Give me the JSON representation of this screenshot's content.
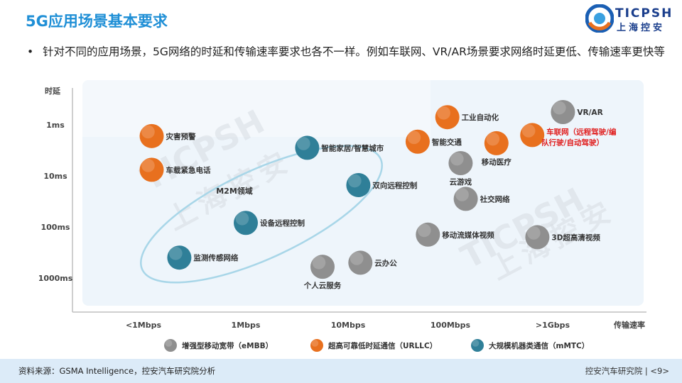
{
  "header": {
    "title": "5G应用场景基本要求",
    "logo_text": "TICPSH",
    "logo_sub": "上海控安"
  },
  "bullet": {
    "symbol": "•",
    "text": "针对不同的应用场景，5G网络的时延和传输速率要求也各不一样。例如车联网、VR/AR场景要求网络时延更低、传输速率更快等"
  },
  "watermark": {
    "latin": "TICPSH",
    "cn": "上海控安"
  },
  "colors": {
    "grey": "#8f8f8f",
    "orange": "#e8701e",
    "teal": "#2f7f98",
    "accent": "#1f8fd6",
    "red_label": "#e02020"
  },
  "chart_data": {
    "type": "scatter",
    "ylabel": "时延",
    "xlabel": "传输速率",
    "x_ticks": [
      "<1Mbps",
      "1Mbps",
      "10Mbps",
      "100Mbps",
      ">1Gbps"
    ],
    "y_ticks": [
      "1ms",
      "10ms",
      "100ms",
      "1000ms"
    ],
    "region_label": "M2M领域",
    "legend": [
      {
        "label": "增强型移动宽带（eMBB）",
        "category": "grey"
      },
      {
        "label": "超高可靠低时延通信（URLLC）",
        "category": "orange"
      },
      {
        "label": "大规模机器类通信（mMTC）",
        "category": "teal"
      }
    ],
    "points": [
      {
        "label": "灾害预警",
        "category": "orange",
        "x": 0.08,
        "y": 0.22
      },
      {
        "label": "车载紧急电话",
        "category": "orange",
        "x": 0.08,
        "y": 0.88
      },
      {
        "label": "智能家居/智慧城市",
        "category": "teal",
        "x": 1.6,
        "y": 0.45
      },
      {
        "label": "双向远程控制",
        "category": "teal",
        "x": 2.1,
        "y": 1.18
      },
      {
        "label": "设备远程控制",
        "category": "teal",
        "x": 1.0,
        "y": 1.92
      },
      {
        "label": "监测传感网络",
        "category": "teal",
        "x": 0.35,
        "y": 2.6
      },
      {
        "label": "个人云服务",
        "category": "grey",
        "x": 1.75,
        "y": 2.78
      },
      {
        "label": "云办公",
        "category": "grey",
        "x": 2.12,
        "y": 2.7
      },
      {
        "label": "工业自动化",
        "category": "orange",
        "x": 2.97,
        "y": -0.15
      },
      {
        "label": "智能交通",
        "category": "orange",
        "x": 2.68,
        "y": 0.33
      },
      {
        "label": "移动医疗",
        "category": "orange",
        "x": 3.45,
        "y": 0.36
      },
      {
        "label": "车联网（远程驾驶/编队行驶/自动驾驶）",
        "category": "orange",
        "x": 3.8,
        "y": 0.2
      },
      {
        "label": "VR/AR",
        "category": "grey",
        "x": 4.1,
        "y": -0.25
      },
      {
        "label": "云游戏",
        "category": "grey",
        "x": 3.1,
        "y": 0.75
      },
      {
        "label": "社交网络",
        "category": "grey",
        "x": 3.15,
        "y": 1.45
      },
      {
        "label": "移动流媒体视频",
        "category": "grey",
        "x": 2.78,
        "y": 2.15
      },
      {
        "label": "3D超高清视频",
        "category": "grey",
        "x": 3.85,
        "y": 2.2
      }
    ]
  },
  "footer": {
    "source": "资料来源：GSMA Intelligence，控安汽车研究院分析",
    "org": "控安汽车研究院",
    "page": "<9>"
  }
}
